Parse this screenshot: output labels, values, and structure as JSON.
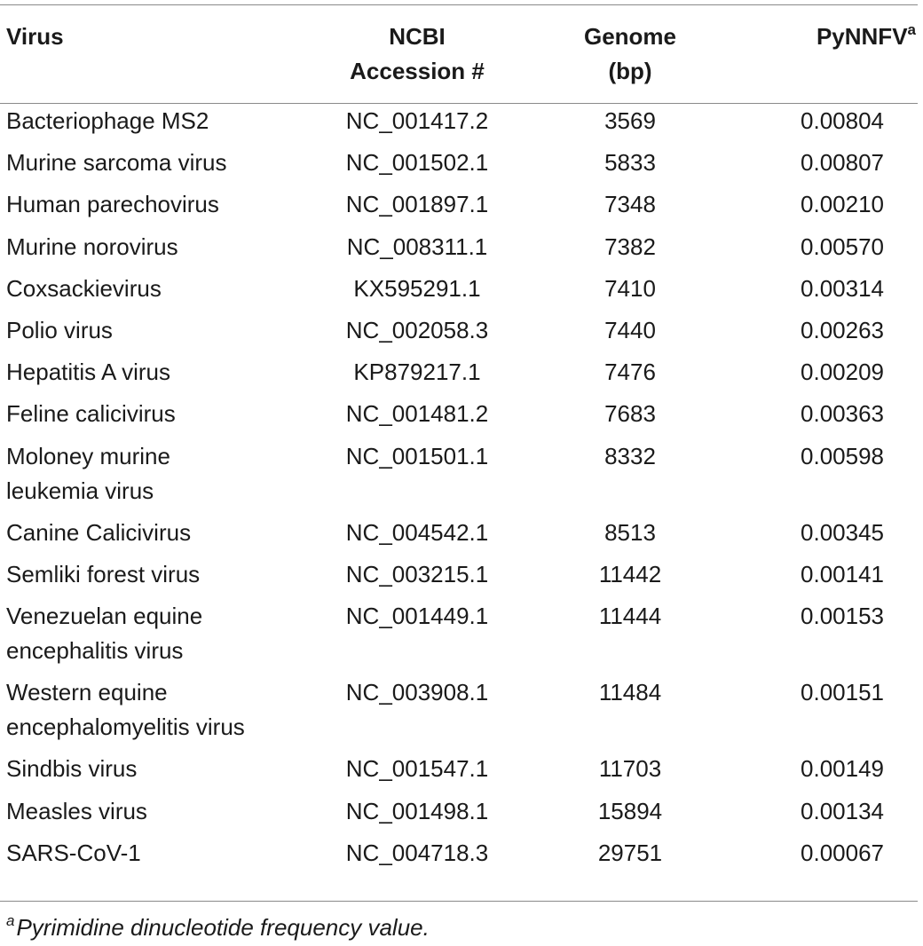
{
  "table": {
    "headers": {
      "virus": "Virus",
      "accession_line1": "NCBI",
      "accession_line2": "Accession #",
      "genome_line1": "Genome",
      "genome_line2": "(bp)",
      "pynnfv": "PyNNFV",
      "pynnfv_marker": "a"
    },
    "rows": [
      {
        "virus_line1": "Bacteriophage MS2",
        "virus_line2": "",
        "accession": "NC_001417.2",
        "genome": "3569",
        "pynnfv": "0.00804"
      },
      {
        "virus_line1": "Murine sarcoma virus",
        "virus_line2": "",
        "accession": "NC_001502.1",
        "genome": "5833",
        "pynnfv": "0.00807"
      },
      {
        "virus_line1": "Human parechovirus",
        "virus_line2": "",
        "accession": "NC_001897.1",
        "genome": "7348",
        "pynnfv": "0.00210"
      },
      {
        "virus_line1": "Murine norovirus",
        "virus_line2": "",
        "accession": "NC_008311.1",
        "genome": "7382",
        "pynnfv": "0.00570"
      },
      {
        "virus_line1": "Coxsackievirus",
        "virus_line2": "",
        "accession": "KX595291.1",
        "genome": "7410",
        "pynnfv": "0.00314"
      },
      {
        "virus_line1": "Polio virus",
        "virus_line2": "",
        "accession": "NC_002058.3",
        "genome": "7440",
        "pynnfv": "0.00263"
      },
      {
        "virus_line1": "Hepatitis A virus",
        "virus_line2": "",
        "accession": "KP879217.1",
        "genome": "7476",
        "pynnfv": "0.00209"
      },
      {
        "virus_line1": "Feline calicivirus",
        "virus_line2": "",
        "accession": "NC_001481.2",
        "genome": "7683",
        "pynnfv": "0.00363"
      },
      {
        "virus_line1": "Moloney murine",
        "virus_line2": "leukemia virus",
        "accession": "NC_001501.1",
        "genome": "8332",
        "pynnfv": "0.00598"
      },
      {
        "virus_line1": "Canine Calicivirus",
        "virus_line2": "",
        "accession": "NC_004542.1",
        "genome": "8513",
        "pynnfv": "0.00345"
      },
      {
        "virus_line1": "Semliki forest virus",
        "virus_line2": "",
        "accession": "NC_003215.1",
        "genome": "11442",
        "pynnfv": "0.00141"
      },
      {
        "virus_line1": "Venezuelan equine",
        "virus_line2": "encephalitis virus",
        "accession": "NC_001449.1",
        "genome": "11444",
        "pynnfv": "0.00153"
      },
      {
        "virus_line1": "Western equine",
        "virus_line2": "encephalomyelitis virus",
        "accession": "NC_003908.1",
        "genome": "11484",
        "pynnfv": "0.00151"
      },
      {
        "virus_line1": "Sindbis virus",
        "virus_line2": "",
        "accession": "NC_001547.1",
        "genome": "11703",
        "pynnfv": "0.00149"
      },
      {
        "virus_line1": "Measles virus",
        "virus_line2": "",
        "accession": "NC_001498.1",
        "genome": "15894",
        "pynnfv": "0.00134"
      },
      {
        "virus_line1": "SARS-CoV-1",
        "virus_line2": "",
        "accession": "NC_004718.3",
        "genome": "29751",
        "pynnfv": "0.00067"
      }
    ]
  },
  "footnote": {
    "marker": "a",
    "text": "Pyrimidine dinucleotide frequency value."
  }
}
